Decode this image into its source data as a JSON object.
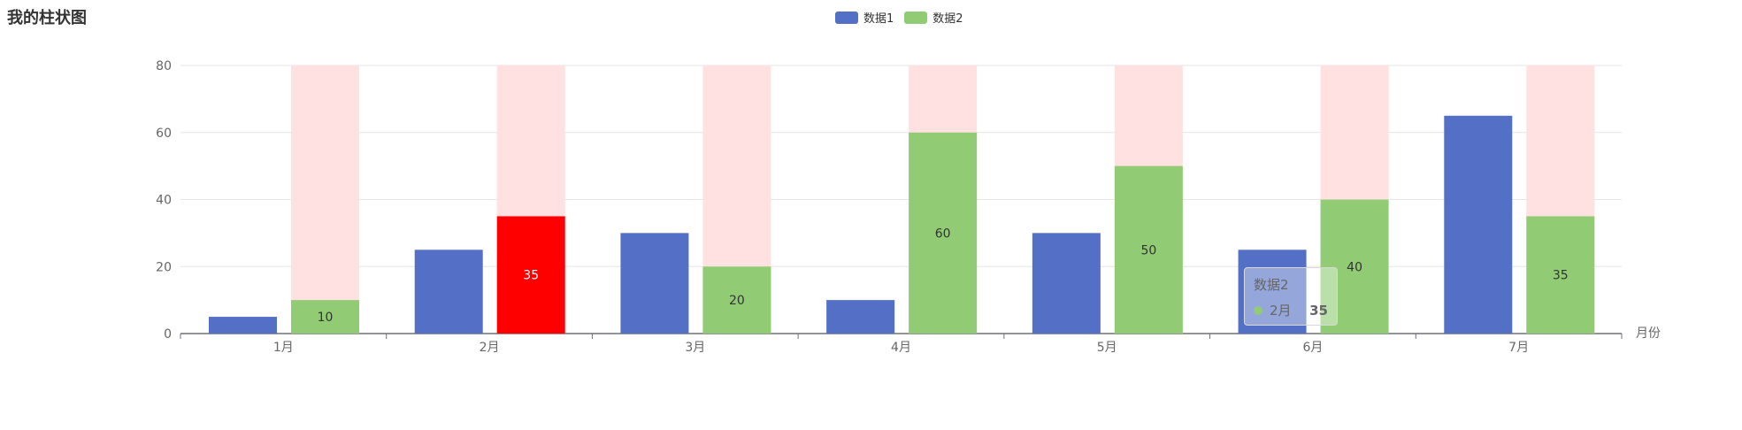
{
  "chart_data": {
    "type": "bar",
    "title": "我的柱状图",
    "xlabel": "月份",
    "ylabel": "",
    "ylim": [
      0,
      80
    ],
    "yticks": [
      0,
      20,
      40,
      60,
      80
    ],
    "categories": [
      "1月",
      "2月",
      "3月",
      "4月",
      "5月",
      "6月",
      "7月"
    ],
    "series": [
      {
        "name": "数据1",
        "color": "#5470c6",
        "values": [
          5,
          25,
          30,
          10,
          30,
          25,
          65
        ]
      },
      {
        "name": "数据2",
        "color": "#91cc75",
        "highlight_color": "#ff0000",
        "background_color": "#ffe1e1",
        "values": [
          10,
          35,
          20,
          60,
          50,
          40,
          35
        ]
      }
    ],
    "legend_position": "top-center",
    "grid": true,
    "tooltip": {
      "series_name": "数据2",
      "category": "2月",
      "value": "35"
    }
  }
}
